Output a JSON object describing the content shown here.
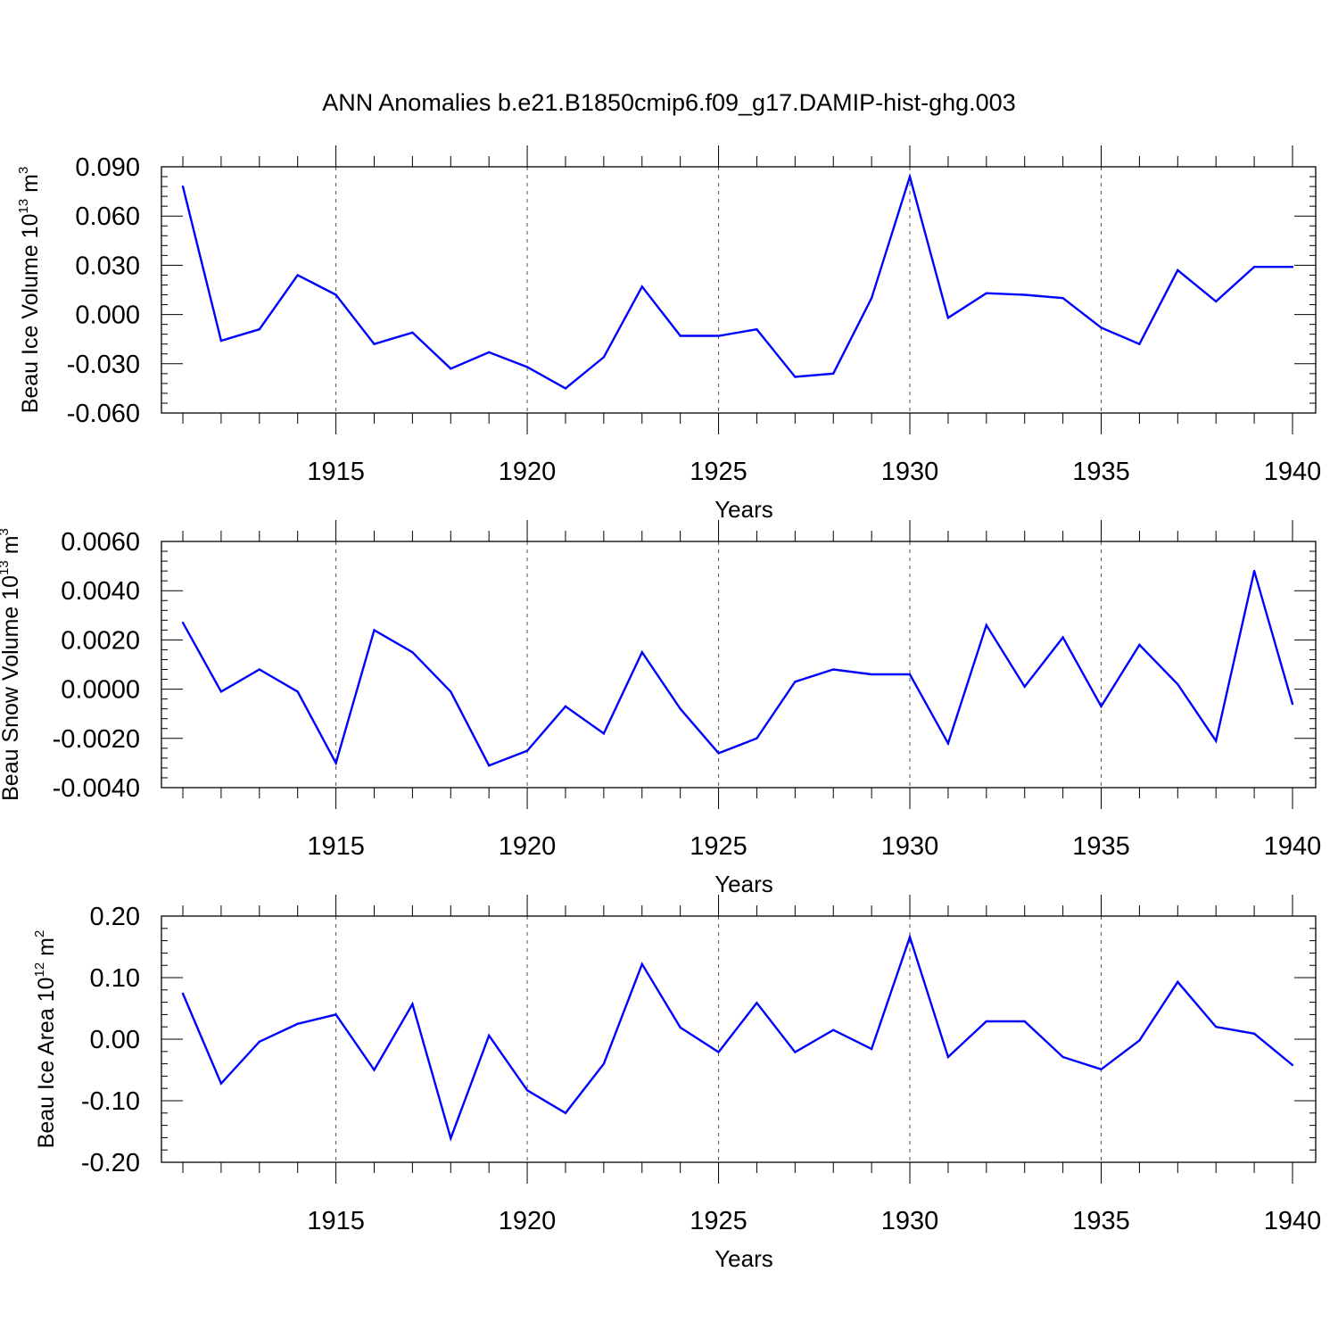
{
  "title": "ANN Anomalies b.e21.B1850cmip6.f09_g17.DAMIP-hist-ghg.003",
  "line_color": "#0000ff",
  "chart_data": [
    {
      "type": "line",
      "ylabel": {
        "text": "Beau Ice Volume 10",
        "sup": "13",
        "unit": " m",
        "unit_sup": "3"
      },
      "xlabel": "Years",
      "xlim": [
        1911,
        1940
      ],
      "ylim": [
        -0.06,
        0.09
      ],
      "yticks": [
        -0.06,
        -0.03,
        0.0,
        0.03,
        0.06,
        0.09
      ],
      "ytick_labels": [
        "-0.060",
        "-0.030",
        "0.000",
        "0.030",
        "0.060",
        "0.090"
      ],
      "xticks": [
        1915,
        1920,
        1925,
        1930,
        1935,
        1940
      ],
      "xtick_labels": [
        "1915",
        "1920",
        "1925",
        "1930",
        "1935",
        "1940"
      ],
      "x": [
        1911,
        1912,
        1913,
        1914,
        1915,
        1916,
        1917,
        1918,
        1919,
        1920,
        1921,
        1922,
        1923,
        1924,
        1925,
        1926,
        1927,
        1928,
        1929,
        1930,
        1931,
        1932,
        1933,
        1934,
        1935,
        1936,
        1937,
        1938,
        1939,
        1940
      ],
      "series": [
        {
          "values": [
            0.078,
            -0.016,
            -0.009,
            0.024,
            0.012,
            -0.018,
            -0.011,
            -0.033,
            -0.023,
            -0.032,
            -0.045,
            -0.026,
            0.017,
            -0.013,
            -0.013,
            -0.009,
            -0.038,
            -0.036,
            0.01,
            0.084,
            -0.002,
            0.013,
            0.012,
            0.01,
            -0.008,
            -0.018,
            0.027,
            0.008,
            0.029,
            0.029
          ]
        }
      ]
    },
    {
      "type": "line",
      "ylabel": {
        "text": "Beau Snow Volume 10",
        "sup": "13",
        "unit": " m",
        "unit_sup": "3"
      },
      "xlabel": "Years",
      "xlim": [
        1911,
        1940
      ],
      "ylim": [
        -0.004,
        0.006
      ],
      "yticks": [
        -0.004,
        -0.002,
        0.0,
        0.002,
        0.004,
        0.006
      ],
      "ytick_labels": [
        "-0.0040",
        "-0.0020",
        "0.0000",
        "0.0020",
        "0.0040",
        "0.0060"
      ],
      "xticks": [
        1915,
        1920,
        1925,
        1930,
        1935,
        1940
      ],
      "xtick_labels": [
        "1915",
        "1920",
        "1925",
        "1930",
        "1935",
        "1940"
      ],
      "x": [
        1911,
        1912,
        1913,
        1914,
        1915,
        1916,
        1917,
        1918,
        1919,
        1920,
        1921,
        1922,
        1923,
        1924,
        1925,
        1926,
        1927,
        1928,
        1929,
        1930,
        1931,
        1932,
        1933,
        1934,
        1935,
        1936,
        1937,
        1938,
        1939,
        1940
      ],
      "series": [
        {
          "values": [
            0.0027,
            -0.0001,
            0.0008,
            -0.0001,
            -0.003,
            0.0024,
            0.0015,
            -0.0001,
            -0.0031,
            -0.0025,
            -0.0007,
            -0.0018,
            0.0015,
            -0.0008,
            -0.0026,
            -0.002,
            0.0003,
            0.0008,
            0.0006,
            0.0006,
            -0.0022,
            0.0026,
            0.0001,
            0.0021,
            -0.0007,
            0.0018,
            0.0002,
            -0.0021,
            0.0048,
            -0.0006
          ]
        }
      ]
    },
    {
      "type": "line",
      "ylabel": {
        "text": "Beau Ice Area 10",
        "sup": "12",
        "unit": " m",
        "unit_sup": "2"
      },
      "xlabel": "Years",
      "xlim": [
        1911,
        1940
      ],
      "ylim": [
        -0.2,
        0.2
      ],
      "yticks": [
        -0.2,
        -0.1,
        0.0,
        0.1,
        0.2
      ],
      "ytick_labels": [
        "-0.20",
        "-0.10",
        "0.00",
        "0.10",
        "0.20"
      ],
      "xticks": [
        1915,
        1920,
        1925,
        1930,
        1935,
        1940
      ],
      "xtick_labels": [
        "1915",
        "1920",
        "1925",
        "1930",
        "1935",
        "1940"
      ],
      "x": [
        1911,
        1912,
        1913,
        1914,
        1915,
        1916,
        1917,
        1918,
        1919,
        1920,
        1921,
        1922,
        1923,
        1924,
        1925,
        1926,
        1927,
        1928,
        1929,
        1930,
        1931,
        1932,
        1933,
        1934,
        1935,
        1936,
        1937,
        1938,
        1939,
        1940
      ],
      "series": [
        {
          "values": [
            0.074,
            -0.072,
            -0.004,
            0.025,
            0.04,
            -0.05,
            0.057,
            -0.161,
            0.006,
            -0.083,
            -0.12,
            -0.04,
            0.122,
            0.019,
            -0.021,
            0.059,
            -0.021,
            0.015,
            -0.016,
            0.166,
            -0.029,
            0.029,
            0.029,
            -0.029,
            -0.049,
            -0.002,
            0.093,
            0.02,
            0.009,
            -0.042
          ]
        }
      ]
    }
  ]
}
